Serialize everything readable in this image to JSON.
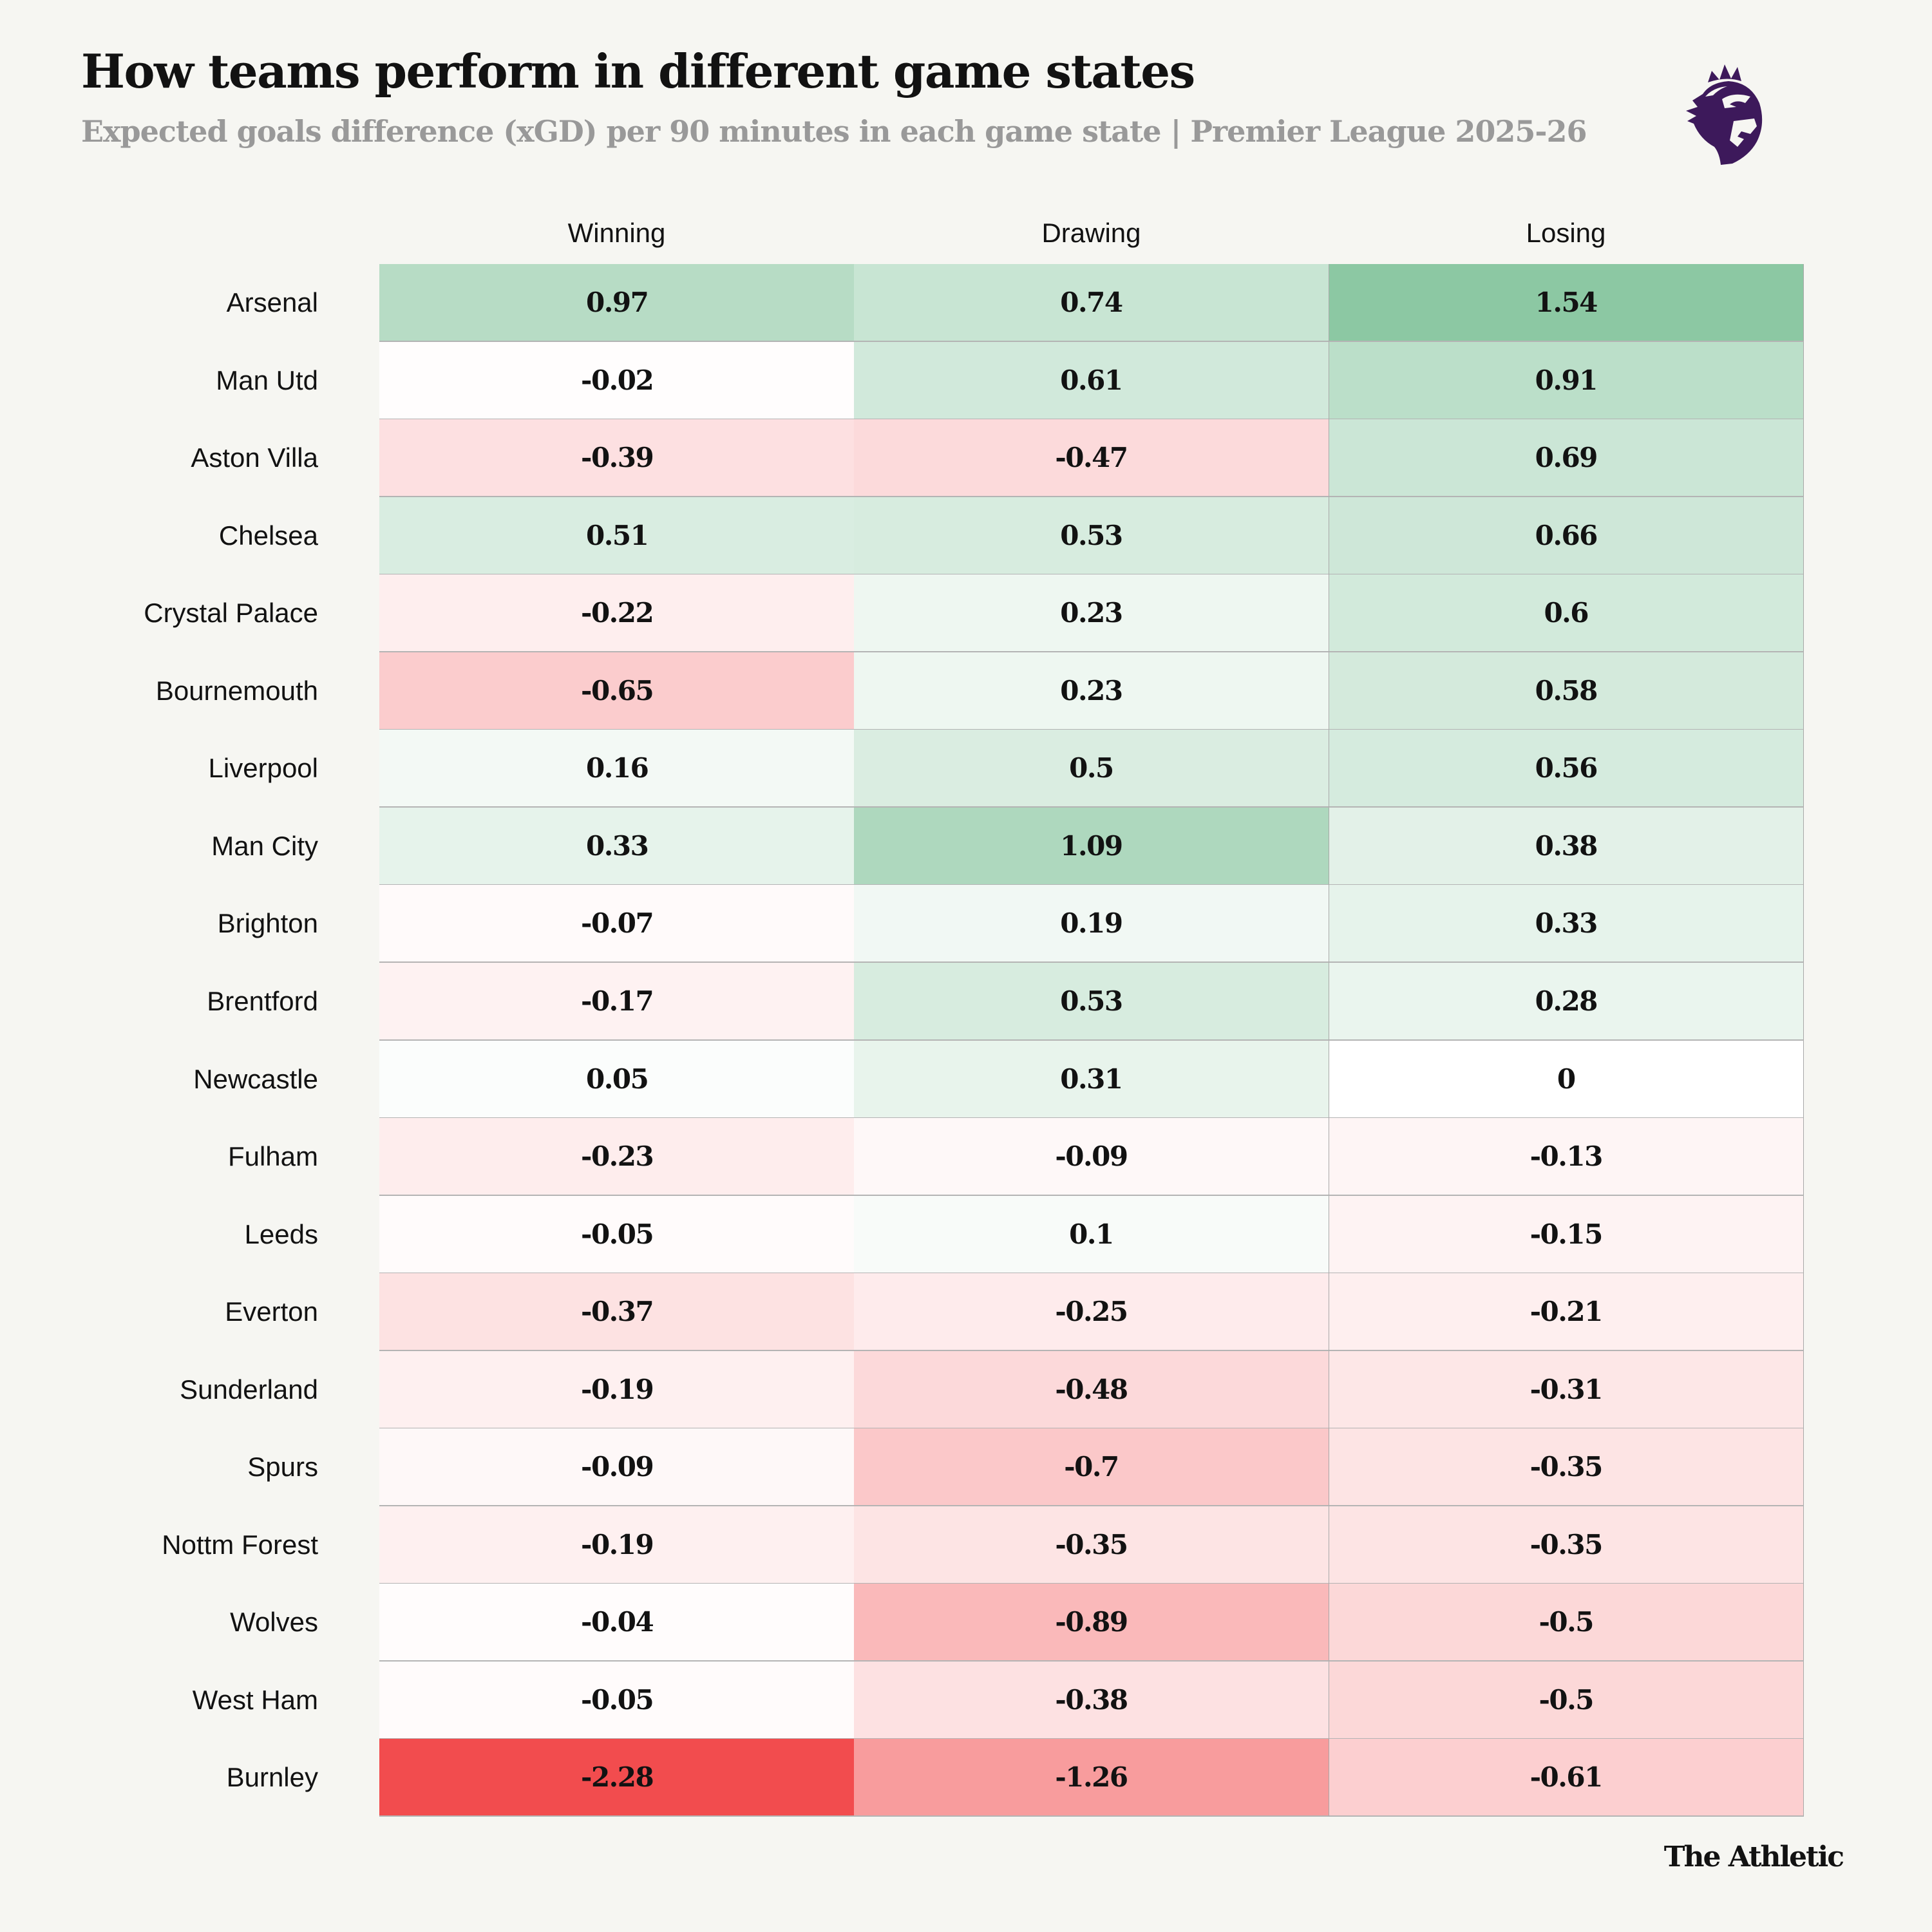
{
  "header": {
    "title": "How teams perform in different game states",
    "subtitle": "Expected goals difference (xGD) per 90 minutes in each game state | Premier League 2025-26",
    "logo_icon": "premier-league-lion-icon",
    "brand": "The Athletic"
  },
  "colors": {
    "background": "#F6F6F2",
    "positive_max": "#8CC8A3",
    "neutral": "#FFFFFF",
    "negative_max": "#F24C4E",
    "logo_purple": "#3D195B",
    "subtitle_gray": "#999999"
  },
  "chart_data": {
    "type": "heatmap",
    "title": "How teams perform in different game states",
    "subtitle": "Expected goals difference (xGD) per 90 minutes in each game state | Premier League 2025-26",
    "columns": [
      "Winning",
      "Drawing",
      "Losing"
    ],
    "color_scale": {
      "type": "diverging",
      "min": -2.28,
      "mid": 0,
      "max": 1.54,
      "min_color": "#F24C4E",
      "mid_color": "#FFFFFF",
      "max_color": "#8CC8A3"
    },
    "rows": [
      {
        "team": "Arsenal",
        "values": [
          "0.97",
          "0.74",
          "1.54"
        ]
      },
      {
        "team": "Man Utd",
        "values": [
          "-0.02",
          "0.61",
          "0.91"
        ]
      },
      {
        "team": "Aston Villa",
        "values": [
          "-0.39",
          "-0.47",
          "0.69"
        ]
      },
      {
        "team": "Chelsea",
        "values": [
          "0.51",
          "0.53",
          "0.66"
        ]
      },
      {
        "team": "Crystal Palace",
        "values": [
          "-0.22",
          "0.23",
          "0.6"
        ]
      },
      {
        "team": "Bournemouth",
        "values": [
          "-0.65",
          "0.23",
          "0.58"
        ]
      },
      {
        "team": "Liverpool",
        "values": [
          "0.16",
          "0.5",
          "0.56"
        ]
      },
      {
        "team": "Man City",
        "values": [
          "0.33",
          "1.09",
          "0.38"
        ]
      },
      {
        "team": "Brighton",
        "values": [
          "-0.07",
          "0.19",
          "0.33"
        ]
      },
      {
        "team": "Brentford",
        "values": [
          "-0.17",
          "0.53",
          "0.28"
        ]
      },
      {
        "team": "Newcastle",
        "values": [
          "0.05",
          "0.31",
          "0"
        ]
      },
      {
        "team": "Fulham",
        "values": [
          "-0.23",
          "-0.09",
          "-0.13"
        ]
      },
      {
        "team": "Leeds",
        "values": [
          "-0.05",
          "0.1",
          "-0.15"
        ]
      },
      {
        "team": "Everton",
        "values": [
          "-0.37",
          "-0.25",
          "-0.21"
        ]
      },
      {
        "team": "Sunderland",
        "values": [
          "-0.19",
          "-0.48",
          "-0.31"
        ]
      },
      {
        "team": "Spurs",
        "values": [
          "-0.09",
          "-0.7",
          "-0.35"
        ]
      },
      {
        "team": "Nottm Forest",
        "values": [
          "-0.19",
          "-0.35",
          "-0.35"
        ]
      },
      {
        "team": "Wolves",
        "values": [
          "-0.04",
          "-0.89",
          "-0.5"
        ]
      },
      {
        "team": "West Ham",
        "values": [
          "-0.05",
          "-0.38",
          "-0.5"
        ]
      },
      {
        "team": "Burnley",
        "values": [
          "-2.28",
          "-1.26",
          "-0.61"
        ]
      }
    ]
  }
}
